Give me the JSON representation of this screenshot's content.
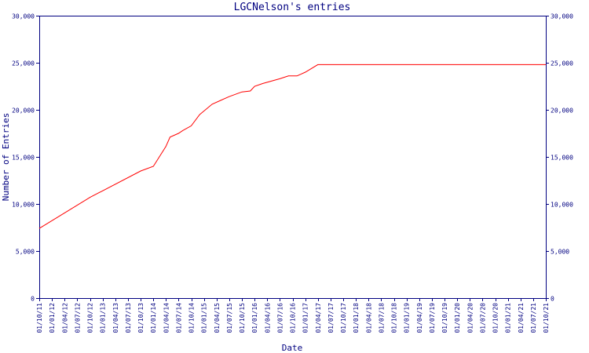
{
  "chart_data": {
    "type": "line",
    "title": "LGCNelson's entries",
    "xlabel": "Date",
    "ylabel": "Number of Entries",
    "ylim": [
      0,
      30000
    ],
    "y_ticks": [
      "0",
      "5,000",
      "10,000",
      "15,000",
      "20,000",
      "25,000",
      "30,000"
    ],
    "y_tick_values": [
      0,
      5000,
      10000,
      15000,
      20000,
      25000,
      30000
    ],
    "x_range": [
      "2011-10-01",
      "2021-10-01"
    ],
    "x_ticks": [
      "01/10/11",
      "01/01/12",
      "01/04/12",
      "01/07/12",
      "01/10/12",
      "01/01/13",
      "01/04/13",
      "01/07/13",
      "01/10/13",
      "01/01/14",
      "01/04/14",
      "01/07/14",
      "01/10/14",
      "01/01/15",
      "01/04/15",
      "01/07/15",
      "01/10/15",
      "01/01/16",
      "01/04/16",
      "01/07/16",
      "01/10/16",
      "01/01/17",
      "01/04/17",
      "01/07/17",
      "01/10/17",
      "01/01/18",
      "01/04/18",
      "01/07/18",
      "01/10/18",
      "01/01/19",
      "01/04/19",
      "01/07/19",
      "01/10/19",
      "01/01/20",
      "01/04/20",
      "01/07/20",
      "01/10/20",
      "01/01/21",
      "01/04/21",
      "01/07/21",
      "01/10/21"
    ],
    "grid": false,
    "line_color": "#ff0000",
    "axis_color": "#000080",
    "series": [
      {
        "x": [
          "2011-10-01",
          "2012-10-01",
          "2013-10-01",
          "2014-01-01",
          "2014-04-01",
          "2014-05-01",
          "2014-07-01",
          "2014-08-01",
          "2014-10-01",
          "2014-12-01",
          "2015-03-01",
          "2015-05-01",
          "2015-07-01",
          "2015-10-01",
          "2015-12-01",
          "2016-01-01",
          "2016-03-01",
          "2016-07-01",
          "2016-09-01",
          "2016-11-01",
          "2017-01-01",
          "2017-04-01",
          "2017-07-01",
          "2018-01-01",
          "2019-01-01",
          "2020-01-01",
          "2021-01-01",
          "2021-10-01"
        ],
        "y": [
          7400,
          10700,
          13500,
          14000,
          16100,
          17100,
          17500,
          17800,
          18300,
          19500,
          20600,
          21000,
          21400,
          21900,
          22000,
          22500,
          22800,
          23300,
          23600,
          23600,
          24000,
          24800,
          24800,
          24800,
          24800,
          24800,
          24800,
          24800
        ]
      }
    ]
  }
}
